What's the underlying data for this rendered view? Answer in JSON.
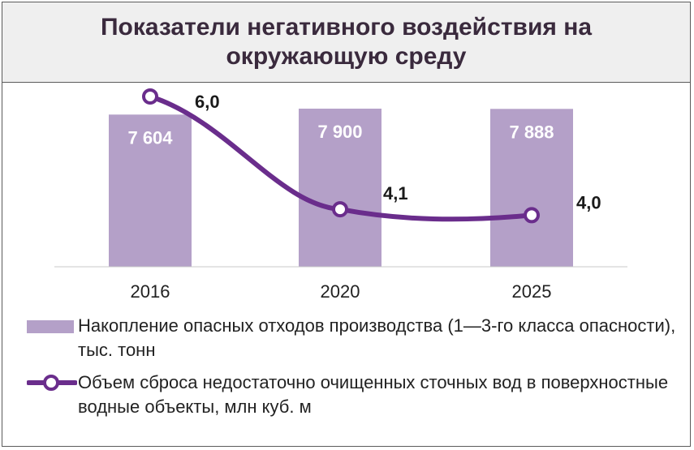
{
  "chart_data": {
    "type": "bar+line",
    "title": "Показатели негативного воздействия на окружающую среду",
    "categories": [
      "2016",
      "2020",
      "2025"
    ],
    "series": [
      {
        "name": "Накопление опасных отходов производства (1—3-го класса опасности), тыс. тонн",
        "type": "bar",
        "values": [
          7604,
          7900,
          7888
        ],
        "labels": [
          "7 604",
          "7 900",
          "7 888"
        ],
        "color": "#b4a0c8"
      },
      {
        "name": "Объем сброса недостаточно очищенных сточных вод в поверхностные водные объекты, млн  куб. м",
        "type": "line",
        "values": [
          6.0,
          4.1,
          4.0
        ],
        "labels": [
          "6,0",
          "4,1",
          "4,0"
        ],
        "color": "#6a2d8c"
      }
    ],
    "grid": false,
    "legend": "bottom"
  }
}
